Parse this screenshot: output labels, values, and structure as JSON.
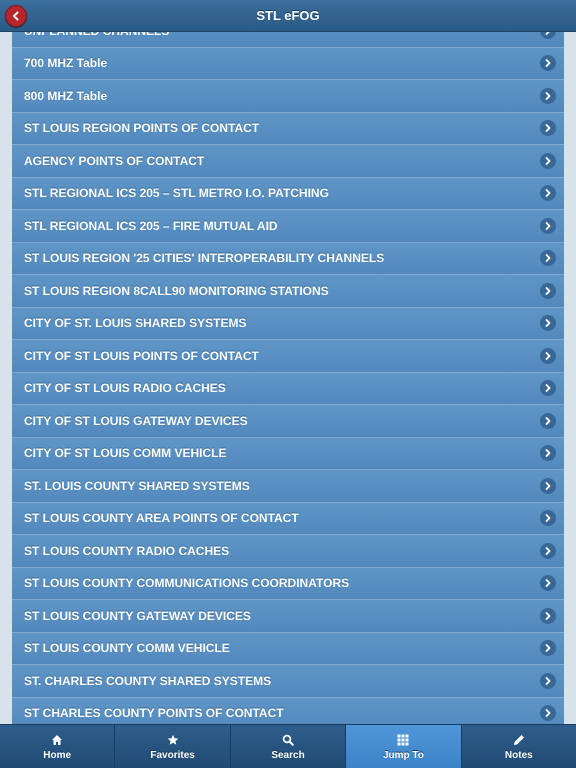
{
  "header": {
    "title": "STL eFOG",
    "back_icon": "back-arrow-icon"
  },
  "list": {
    "items": [
      {
        "label": "UNPLANNED CHANNELS"
      },
      {
        "label": "700 MHZ Table"
      },
      {
        "label": "800 MHZ Table"
      },
      {
        "label": "ST LOUIS REGION POINTS OF CONTACT"
      },
      {
        "label": "AGENCY POINTS OF CONTACT"
      },
      {
        "label": "STL REGIONAL ICS 205 – STL METRO I.O. PATCHING"
      },
      {
        "label": "STL REGIONAL ICS 205 – FIRE MUTUAL AID"
      },
      {
        "label": "ST LOUIS REGION '25 CITIES' INTEROPERABILITY CHANNELS"
      },
      {
        "label": "ST LOUIS REGION 8CALL90 MONITORING STATIONS"
      },
      {
        "label": "CITY OF ST. LOUIS SHARED SYSTEMS"
      },
      {
        "label": "CITY OF ST LOUIS POINTS OF CONTACT"
      },
      {
        "label": "CITY OF ST LOUIS RADIO CACHES"
      },
      {
        "label": "CITY OF ST LOUIS GATEWAY DEVICES"
      },
      {
        "label": "CITY OF ST LOUIS COMM VEHICLE"
      },
      {
        "label": "ST. LOUIS COUNTY SHARED SYSTEMS"
      },
      {
        "label": "ST LOUIS COUNTY AREA POINTS OF CONTACT"
      },
      {
        "label": "ST LOUIS COUNTY RADIO CACHES"
      },
      {
        "label": "ST LOUIS COUNTY COMMUNICATIONS COORDINATORS"
      },
      {
        "label": "ST LOUIS COUNTY GATEWAY DEVICES"
      },
      {
        "label": "ST LOUIS COUNTY COMM VEHICLE"
      },
      {
        "label": "ST. CHARLES COUNTY SHARED SYSTEMS"
      },
      {
        "label": "ST CHARLES COUNTY POINTS OF CONTACT"
      }
    ]
  },
  "tabbar": {
    "tabs": [
      {
        "label": "Home",
        "icon": "home-icon",
        "active": false
      },
      {
        "label": "Favorites",
        "icon": "star-icon",
        "active": false
      },
      {
        "label": "Search",
        "icon": "search-icon",
        "active": false
      },
      {
        "label": "Jump To",
        "icon": "grid-icon",
        "active": true
      },
      {
        "label": "Notes",
        "icon": "pencil-icon",
        "active": false
      }
    ]
  },
  "colors": {
    "header": "#2f6190",
    "list_item": "#5a91c3",
    "back_button": "#b5252b",
    "active_tab": "#4690d2"
  }
}
